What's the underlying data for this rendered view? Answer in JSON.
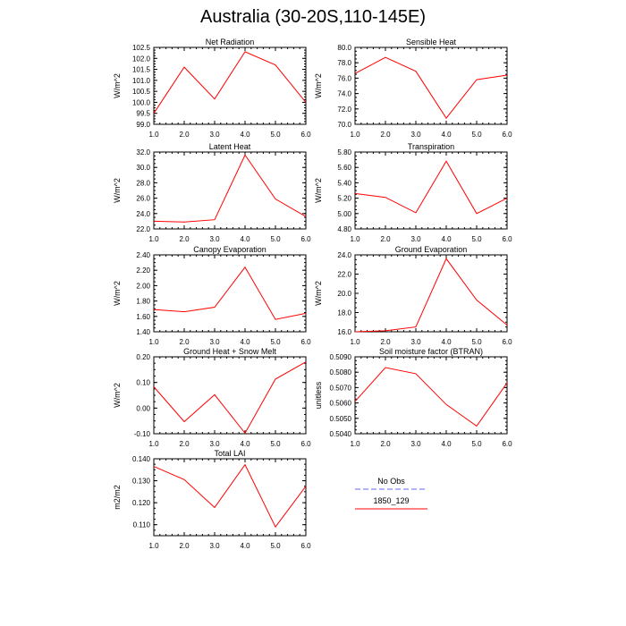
{
  "title": "Australia (30-20S,110-145E)",
  "colors": {
    "model": "#ff0000",
    "obs": "#9999ff",
    "axis": "#000000"
  },
  "legend": {
    "items": [
      {
        "label": "No Obs",
        "style": "dashed",
        "color": "#9999ff"
      },
      {
        "label": "1850_129",
        "style": "solid",
        "color": "#ff0000"
      }
    ]
  },
  "chart_data": [
    {
      "type": "line",
      "title": "Net Radiation",
      "ylabel": "W/m^2",
      "x": [
        1,
        2,
        3,
        4,
        5,
        6
      ],
      "xlim": [
        1,
        6
      ],
      "xticks": [
        "1.0",
        "2.0",
        "3.0",
        "4.0",
        "5.0",
        "6.0"
      ],
      "ylim": [
        99.0,
        102.5
      ],
      "yticks": [
        "99.0",
        "99.5",
        "100.0",
        "100.5",
        "101.0",
        "101.5",
        "102.0",
        "102.5"
      ],
      "series": [
        {
          "name": "1850_129",
          "values": [
            99.5,
            101.6,
            100.15,
            102.3,
            101.7,
            100.0
          ]
        }
      ]
    },
    {
      "type": "line",
      "title": "Sensible Heat",
      "ylabel": "W/m^2",
      "x": [
        1,
        2,
        3,
        4,
        5,
        6
      ],
      "xlim": [
        1,
        6
      ],
      "xticks": [
        "1.0",
        "2.0",
        "3.0",
        "4.0",
        "5.0",
        "6.0"
      ],
      "ylim": [
        70.0,
        80.0
      ],
      "yticks": [
        "70.0",
        "72.0",
        "74.0",
        "76.0",
        "78.0",
        "80.0"
      ],
      "series": [
        {
          "name": "1850_129",
          "values": [
            76.6,
            78.7,
            76.9,
            70.8,
            75.8,
            76.4
          ]
        }
      ]
    },
    {
      "type": "line",
      "title": "Latent Heat",
      "ylabel": "W/m^2",
      "x": [
        1,
        2,
        3,
        4,
        5,
        6
      ],
      "xlim": [
        1,
        6
      ],
      "xticks": [
        "1.0",
        "2.0",
        "3.0",
        "4.0",
        "5.0",
        "6.0"
      ],
      "ylim": [
        22.0,
        32.0
      ],
      "yticks": [
        "22.0",
        "24.0",
        "26.0",
        "28.0",
        "30.0",
        "32.0"
      ],
      "series": [
        {
          "name": "1850_129",
          "values": [
            23.0,
            22.9,
            23.2,
            31.6,
            25.9,
            23.6
          ]
        }
      ]
    },
    {
      "type": "line",
      "title": "Transpiration",
      "ylabel": "W/m^2",
      "x": [
        1,
        2,
        3,
        4,
        5,
        6
      ],
      "xlim": [
        1,
        6
      ],
      "xticks": [
        "1.0",
        "2.0",
        "3.0",
        "4.0",
        "5.0",
        "6.0"
      ],
      "ylim": [
        4.8,
        5.8
      ],
      "yticks": [
        "4.80",
        "5.00",
        "5.20",
        "5.40",
        "5.60",
        "5.80"
      ],
      "series": [
        {
          "name": "1850_129",
          "values": [
            5.26,
            5.21,
            5.01,
            5.68,
            5.0,
            5.2
          ]
        }
      ]
    },
    {
      "type": "line",
      "title": "Canopy Evaporation",
      "ylabel": "W/m^2",
      "x": [
        1,
        2,
        3,
        4,
        5,
        6
      ],
      "xlim": [
        1,
        6
      ],
      "xticks": [
        "1.0",
        "2.0",
        "3.0",
        "4.0",
        "5.0",
        "6.0"
      ],
      "ylim": [
        1.4,
        2.4
      ],
      "yticks": [
        "1.40",
        "1.60",
        "1.80",
        "2.00",
        "2.20",
        "2.40"
      ],
      "series": [
        {
          "name": "1850_129",
          "values": [
            1.69,
            1.66,
            1.72,
            2.24,
            1.56,
            1.64
          ]
        }
      ]
    },
    {
      "type": "line",
      "title": "Ground Evaporation",
      "ylabel": "W/m^2",
      "x": [
        1,
        2,
        3,
        4,
        5,
        6
      ],
      "xlim": [
        1,
        6
      ],
      "xticks": [
        "1.0",
        "2.0",
        "3.0",
        "4.0",
        "5.0",
        "6.0"
      ],
      "ylim": [
        16.0,
        24.0
      ],
      "yticks": [
        "16.0",
        "18.0",
        "20.0",
        "22.0",
        "24.0"
      ],
      "series": [
        {
          "name": "1850_129",
          "values": [
            16.0,
            16.1,
            16.5,
            23.6,
            19.3,
            16.7
          ]
        }
      ]
    },
    {
      "type": "line",
      "title": "Ground Heat + Snow Melt",
      "ylabel": "W/m^2",
      "x": [
        1,
        2,
        3,
        4,
        5,
        6
      ],
      "xlim": [
        1,
        6
      ],
      "xticks": [
        "1.0",
        "2.0",
        "3.0",
        "4.0",
        "5.0",
        "6.0"
      ],
      "ylim": [
        -0.1,
        0.2
      ],
      "yticks": [
        "-0.10",
        "0.00",
        "0.10",
        "0.20"
      ],
      "series": [
        {
          "name": "1850_129",
          "values": [
            0.083,
            -0.053,
            0.052,
            -0.098,
            0.113,
            0.18
          ]
        }
      ]
    },
    {
      "type": "line",
      "title": "Soil moisture factor (BTRAN)",
      "ylabel": "unitless",
      "x": [
        1,
        2,
        3,
        4,
        5,
        6
      ],
      "xlim": [
        1,
        6
      ],
      "xticks": [
        "1.0",
        "2.0",
        "3.0",
        "4.0",
        "5.0",
        "6.0"
      ],
      "ylim": [
        0.504,
        0.509
      ],
      "yticks": [
        "0.5040",
        "0.5050",
        "0.5060",
        "0.5070",
        "0.5080",
        "0.5090"
      ],
      "series": [
        {
          "name": "1850_129",
          "values": [
            0.5061,
            0.5083,
            0.5079,
            0.5059,
            0.5045,
            0.5073
          ]
        }
      ]
    },
    {
      "type": "line",
      "title": "Total LAI",
      "ylabel": "m2/m2",
      "x": [
        1,
        2,
        3,
        4,
        5,
        6
      ],
      "xlim": [
        1,
        6
      ],
      "xticks": [
        "1.0",
        "2.0",
        "3.0",
        "4.0",
        "5.0",
        "6.0"
      ],
      "ylim": [
        0.105,
        0.14
      ],
      "yticks": [
        "0.110",
        "0.120",
        "0.130",
        "0.140"
      ],
      "series": [
        {
          "name": "1850_129",
          "values": [
            0.1365,
            0.1305,
            0.1178,
            0.1373,
            0.109,
            0.1275
          ]
        }
      ]
    }
  ]
}
